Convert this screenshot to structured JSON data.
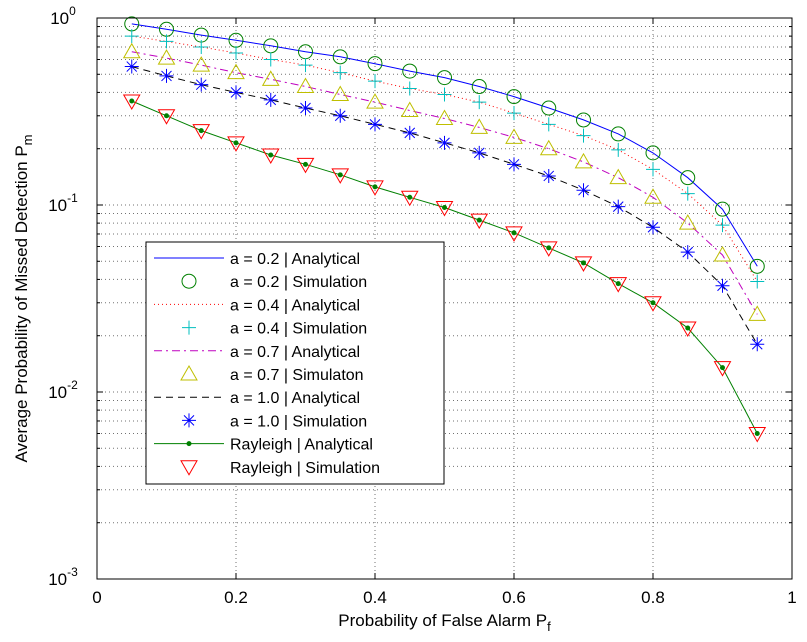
{
  "chart_data": {
    "type": "line",
    "title": "",
    "xlabel": "Probability of False Alarm P",
    "xlabel_sub": "f",
    "ylabel": "Average Probability of Missed Detection P",
    "ylabel_sub": "m",
    "xscale": "linear",
    "yscale": "log",
    "xlim": [
      0,
      1
    ],
    "ylim": [
      0.001,
      1
    ],
    "grid": true,
    "legend_position": "bottom-left",
    "x_ticks": [
      "0",
      "0.2",
      "0.4",
      "0.6",
      "0.8",
      "1"
    ],
    "x_tick_values": [
      0,
      0.2,
      0.4,
      0.6,
      0.8,
      1
    ],
    "y_ticks": [
      {
        "value": 1,
        "base": "10",
        "exp": "0"
      },
      {
        "value": 0.1,
        "base": "10",
        "exp": "-1"
      },
      {
        "value": 0.01,
        "base": "10",
        "exp": "-2"
      },
      {
        "value": 0.001,
        "base": "10",
        "exp": "-3"
      }
    ],
    "x": [
      0.05,
      0.1,
      0.15,
      0.2,
      0.25,
      0.3,
      0.35,
      0.4,
      0.45,
      0.5,
      0.55,
      0.6,
      0.65,
      0.7,
      0.75,
      0.8,
      0.85,
      0.9,
      0.95
    ],
    "series": [
      {
        "name": "a = 0.2  |  Analytical",
        "color": "#0000ff",
        "line": "solid",
        "marker": "none",
        "values": [
          0.93,
          0.87,
          0.81,
          0.76,
          0.71,
          0.66,
          0.62,
          0.57,
          0.52,
          0.48,
          0.43,
          0.38,
          0.33,
          0.285,
          0.24,
          0.19,
          0.14,
          0.095,
          0.047
        ]
      },
      {
        "name": "a = 0.2  | Simulation",
        "color": "#008000",
        "line": "none",
        "marker": "circle",
        "values": [
          0.93,
          0.87,
          0.81,
          0.76,
          0.71,
          0.66,
          0.62,
          0.57,
          0.52,
          0.48,
          0.43,
          0.38,
          0.33,
          0.285,
          0.24,
          0.19,
          0.14,
          0.095,
          0.047
        ]
      },
      {
        "name": "a = 0.4  |  Analytical",
        "color": "#ff0000",
        "line": "dotted",
        "marker": "none",
        "values": [
          0.8,
          0.75,
          0.7,
          0.65,
          0.6,
          0.56,
          0.51,
          0.46,
          0.42,
          0.39,
          0.355,
          0.31,
          0.27,
          0.235,
          0.197,
          0.155,
          0.115,
          0.078,
          0.039
        ]
      },
      {
        "name": "a = 0.4  | Simulation",
        "color": "#00bfbf",
        "line": "none",
        "marker": "plus",
        "values": [
          0.8,
          0.75,
          0.7,
          0.65,
          0.6,
          0.56,
          0.51,
          0.46,
          0.42,
          0.39,
          0.355,
          0.31,
          0.27,
          0.235,
          0.197,
          0.155,
          0.115,
          0.078,
          0.039
        ]
      },
      {
        "name": "a = 0.7  |  Analytical",
        "color": "#bf00bf",
        "line": "dashdot",
        "marker": "none",
        "values": [
          0.66,
          0.61,
          0.56,
          0.51,
          0.47,
          0.43,
          0.39,
          0.355,
          0.32,
          0.29,
          0.26,
          0.23,
          0.2,
          0.17,
          0.14,
          0.11,
          0.08,
          0.054,
          0.026
        ]
      },
      {
        "name": "a = 0.7  | Simulaton",
        "color": "#bfbf00",
        "line": "none",
        "marker": "triangle-up",
        "values": [
          0.66,
          0.61,
          0.56,
          0.51,
          0.47,
          0.43,
          0.39,
          0.355,
          0.32,
          0.29,
          0.26,
          0.23,
          0.2,
          0.17,
          0.14,
          0.11,
          0.08,
          0.054,
          0.026
        ]
      },
      {
        "name": "a = 1.0  |  Analytical",
        "color": "#000000",
        "line": "dashed",
        "marker": "none",
        "values": [
          0.55,
          0.49,
          0.44,
          0.4,
          0.365,
          0.33,
          0.3,
          0.27,
          0.243,
          0.215,
          0.19,
          0.165,
          0.143,
          0.12,
          0.098,
          0.076,
          0.056,
          0.037,
          0.018
        ]
      },
      {
        "name": "a = 1.0  | Simulation",
        "color": "#0000ff",
        "line": "none",
        "marker": "asterisk",
        "values": [
          0.55,
          0.49,
          0.44,
          0.4,
          0.365,
          0.33,
          0.3,
          0.27,
          0.243,
          0.215,
          0.19,
          0.165,
          0.143,
          0.12,
          0.098,
          0.076,
          0.056,
          0.037,
          0.018
        ]
      },
      {
        "name": "Rayleigh  |  Analytical",
        "color": "#008000",
        "line": "solid",
        "marker": "dot",
        "values": [
          0.36,
          0.3,
          0.25,
          0.215,
          0.185,
          0.165,
          0.145,
          0.125,
          0.11,
          0.097,
          0.083,
          0.071,
          0.059,
          0.049,
          0.038,
          0.03,
          0.022,
          0.0135,
          0.006
        ]
      },
      {
        "name": "Rayleigh  | Simulation",
        "color": "#ff0000",
        "line": "none",
        "marker": "triangle-down",
        "values": [
          0.36,
          0.3,
          0.25,
          0.215,
          0.185,
          0.165,
          0.145,
          0.125,
          0.11,
          0.097,
          0.083,
          0.071,
          0.059,
          0.049,
          0.038,
          0.03,
          0.022,
          0.0135,
          0.006
        ]
      }
    ]
  }
}
